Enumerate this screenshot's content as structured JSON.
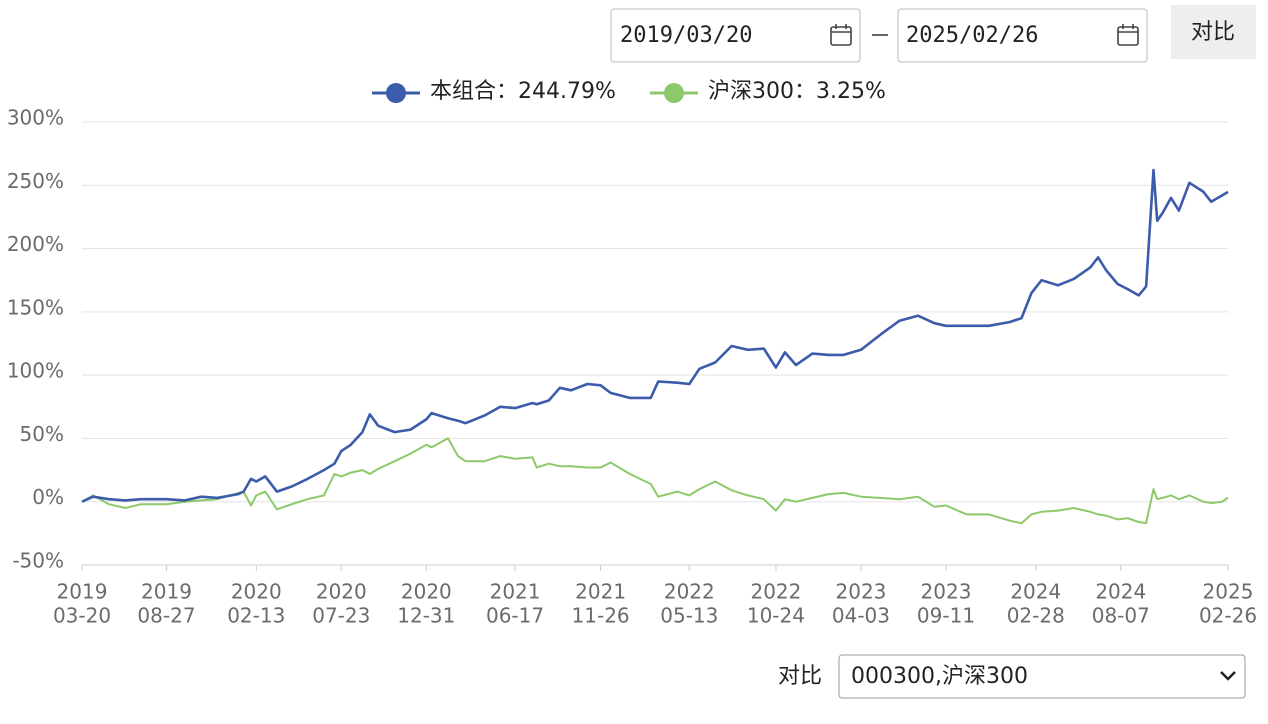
{
  "ui": {
    "date_start": "2019/03/20",
    "date_end": "2025/02/26",
    "compare_button": "对比",
    "compare_label": "对比",
    "compare_select": "000300,沪深300"
  },
  "chart_data": {
    "type": "line",
    "x": [
      "2019-03-20",
      "2019-04-10",
      "2019-05-10",
      "2019-06-10",
      "2019-07-10",
      "2019-08-27",
      "2019-10-01",
      "2019-11-01",
      "2019-12-01",
      "2020-01-10",
      "2020-01-20",
      "2020-02-03",
      "2020-02-13",
      "2020-03-01",
      "2020-03-23",
      "2020-04-20",
      "2020-05-20",
      "2020-06-20",
      "2020-07-10",
      "2020-07-23",
      "2020-08-10",
      "2020-09-01",
      "2020-09-15",
      "2020-10-01",
      "2020-11-01",
      "2020-12-01",
      "2020-12-31",
      "2021-01-10",
      "2021-02-10",
      "2021-03-01",
      "2021-03-15",
      "2021-04-20",
      "2021-05-20",
      "2021-06-17",
      "2021-07-20",
      "2021-07-28",
      "2021-08-20",
      "2021-09-10",
      "2021-10-01",
      "2021-11-01",
      "2021-11-26",
      "2021-12-15",
      "2022-01-20",
      "2022-03-01",
      "2022-03-15",
      "2022-04-20",
      "2022-05-13",
      "2022-06-01",
      "2022-07-01",
      "2022-08-01",
      "2022-09-01",
      "2022-10-01",
      "2022-10-24",
      "2022-11-10",
      "2022-12-01",
      "2023-01-01",
      "2023-02-01",
      "2023-03-01",
      "2023-04-03",
      "2023-05-10",
      "2023-06-15",
      "2023-07-20",
      "2023-08-20",
      "2023-09-11",
      "2023-10-20",
      "2023-12-01",
      "2024-01-10",
      "2024-02-01",
      "2024-02-20",
      "2024-03-10",
      "2024-04-10",
      "2024-05-10",
      "2024-06-10",
      "2024-06-25",
      "2024-07-10",
      "2024-08-01",
      "2024-08-20",
      "2024-09-10",
      "2024-09-24",
      "2024-10-08",
      "2024-10-15",
      "2024-10-25",
      "2024-11-10",
      "2024-11-25",
      "2024-12-15",
      "2025-01-10",
      "2025-01-25",
      "2025-02-15",
      "2025-02-26"
    ],
    "series": [
      {
        "name": "本组合：244.79%",
        "color": "#3b5bab",
        "values": [
          0,
          4,
          2,
          1,
          2,
          2,
          1,
          4,
          3,
          6,
          8,
          18,
          16,
          20,
          8,
          12,
          18,
          25,
          30,
          40,
          45,
          55,
          69,
          60,
          55,
          57,
          65,
          70,
          66,
          64,
          62,
          68,
          75,
          74,
          78,
          77,
          80,
          90,
          88,
          93,
          92,
          86,
          82,
          82,
          95,
          94,
          93,
          105,
          110,
          123,
          120,
          121,
          106,
          118,
          108,
          117,
          116,
          116,
          120,
          132,
          143,
          147,
          141,
          139,
          139,
          139,
          142,
          145,
          165,
          175,
          171,
          176,
          185,
          193,
          183,
          172,
          168,
          163,
          170,
          262,
          222,
          228,
          240,
          230,
          252,
          245,
          237,
          242,
          244.79
        ]
      },
      {
        "name": "沪深300：3.25%",
        "color": "#8cc96a",
        "values": [
          0,
          5,
          -2,
          -5,
          -2,
          -2,
          0,
          1,
          2,
          7,
          8,
          -3,
          5,
          8,
          -6,
          -2,
          2,
          5,
          22,
          20,
          23,
          25,
          22,
          26,
          32,
          38,
          45,
          43,
          50,
          36,
          32,
          32,
          36,
          34,
          35,
          27,
          30,
          28,
          28,
          27,
          27,
          31,
          22,
          14,
          4,
          8,
          5,
          10,
          16,
          9,
          5,
          2,
          -7,
          2,
          0,
          3,
          6,
          7,
          4,
          3,
          2,
          4,
          -4,
          -3,
          -10,
          -10,
          -15,
          -17,
          -10,
          -8,
          -7,
          -5,
          -8,
          -10,
          -11,
          -14,
          -13,
          -16,
          -17,
          10,
          2,
          3,
          5,
          2,
          5,
          0,
          -1,
          0,
          3.25
        ]
      }
    ],
    "xlim": [
      "2019-03-20",
      "2025-02-26"
    ],
    "xticks": [
      {
        "value": "2019-03-20",
        "label": [
          "2019",
          "03-20"
        ]
      },
      {
        "value": "2019-08-27",
        "label": [
          "2019",
          "08-27"
        ]
      },
      {
        "value": "2020-02-13",
        "label": [
          "2020",
          "02-13"
        ]
      },
      {
        "value": "2020-07-23",
        "label": [
          "2020",
          "07-23"
        ]
      },
      {
        "value": "2020-12-31",
        "label": [
          "2020",
          "12-31"
        ]
      },
      {
        "value": "2021-06-17",
        "label": [
          "2021",
          "06-17"
        ]
      },
      {
        "value": "2021-11-26",
        "label": [
          "2021",
          "11-26"
        ]
      },
      {
        "value": "2022-05-13",
        "label": [
          "2022",
          "05-13"
        ]
      },
      {
        "value": "2022-10-24",
        "label": [
          "2022",
          "10-24"
        ]
      },
      {
        "value": "2023-04-03",
        "label": [
          "2023",
          "04-03"
        ]
      },
      {
        "value": "2023-09-11",
        "label": [
          "2023",
          "09-11"
        ]
      },
      {
        "value": "2024-02-28",
        "label": [
          "2024",
          "02-28"
        ]
      },
      {
        "value": "2024-08-07",
        "label": [
          "2024",
          "08-07"
        ]
      },
      {
        "value": "2025-02-26",
        "label": [
          "2025",
          "02-26"
        ]
      }
    ],
    "ylim": [
      -50,
      300
    ],
    "yticks": [
      {
        "value": -50,
        "label": "-50%"
      },
      {
        "value": 0,
        "label": "0%"
      },
      {
        "value": 50,
        "label": "50%"
      },
      {
        "value": 100,
        "label": "100%"
      },
      {
        "value": 150,
        "label": "150%"
      },
      {
        "value": 200,
        "label": "200%"
      },
      {
        "value": 250,
        "label": "250%"
      },
      {
        "value": 300,
        "label": "300%"
      }
    ],
    "grid": true
  }
}
